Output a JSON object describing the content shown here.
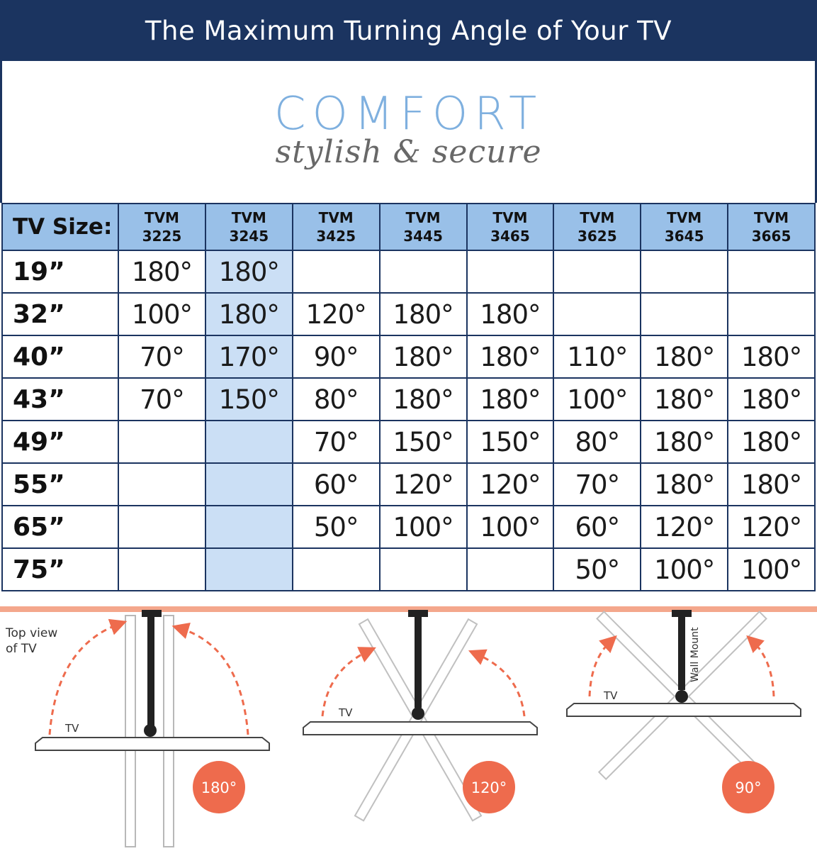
{
  "header": {
    "title": "The Maximum Turning Angle of Your TV"
  },
  "brand": {
    "name": "COMFORT",
    "tagline": "stylish & secure"
  },
  "colors": {
    "banner": "#1b3460",
    "table_header": "#99c0e8",
    "highlight_column": "#cbdff5",
    "badge": "#ee6b4d",
    "wall": "#f4a78c",
    "brand_name": "#7fb0df"
  },
  "table": {
    "size_header": "TV Size:",
    "models": [
      {
        "line1": "TVM",
        "line2": "3225"
      },
      {
        "line1": "TVM",
        "line2": "3245"
      },
      {
        "line1": "TVM",
        "line2": "3425"
      },
      {
        "line1": "TVM",
        "line2": "3445"
      },
      {
        "line1": "TVM",
        "line2": "3465"
      },
      {
        "line1": "TVM",
        "line2": "3625"
      },
      {
        "line1": "TVM",
        "line2": "3645"
      },
      {
        "line1": "TVM",
        "line2": "3665"
      }
    ],
    "highlighted_model": "3245",
    "rows": [
      {
        "size": "19”",
        "values": [
          "180°",
          "180°",
          "",
          "",
          "",
          "",
          "",
          ""
        ]
      },
      {
        "size": "32”",
        "values": [
          "100°",
          "180°",
          "120°",
          "180°",
          "180°",
          "",
          "",
          ""
        ]
      },
      {
        "size": "40”",
        "values": [
          "70°",
          "170°",
          "90°",
          "180°",
          "180°",
          "110°",
          "180°",
          "180°"
        ]
      },
      {
        "size": "43”",
        "values": [
          "70°",
          "150°",
          "80°",
          "180°",
          "180°",
          "100°",
          "180°",
          "180°"
        ]
      },
      {
        "size": "49”",
        "values": [
          "",
          "",
          "70°",
          "150°",
          "150°",
          "80°",
          "180°",
          "180°"
        ]
      },
      {
        "size": "55”",
        "values": [
          "",
          "",
          "60°",
          "120°",
          "120°",
          "70°",
          "180°",
          "180°"
        ]
      },
      {
        "size": "65”",
        "values": [
          "",
          "",
          "50°",
          "100°",
          "100°",
          "60°",
          "120°",
          "120°"
        ]
      },
      {
        "size": "75”",
        "values": [
          "",
          "",
          "",
          "",
          "",
          "50°",
          "100°",
          "100°"
        ]
      }
    ]
  },
  "diagram": {
    "top_view_label_line1": "Top view",
    "top_view_label_line2": "of TV",
    "tv_label": "TV",
    "wall_mount_label": "Wall Mount",
    "angles": [
      "180°",
      "120°",
      "90°"
    ]
  }
}
